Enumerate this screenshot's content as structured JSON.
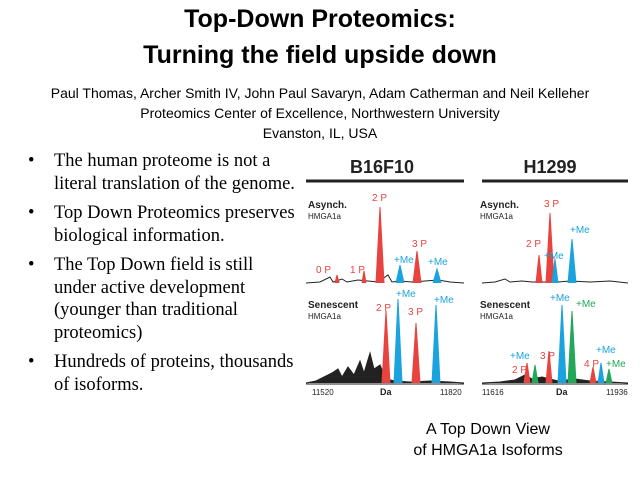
{
  "slide": {
    "title_line1": "Top-Down Proteomics:",
    "title_line2": "Turning the field upside down",
    "authors": "Paul Thomas, Archer Smith IV, John Paul Savaryn, Adam Catherman and Neil Kelleher",
    "affiliation": "Proteomics Center of Excellence, Northwestern University",
    "location": "Evanston, IL, USA"
  },
  "bullets": [
    {
      "marker": "•",
      "text": "The human proteome is not a literal translation of the genome."
    },
    {
      "marker": "•",
      "text": "Top Down Proteomics preserves biological information."
    },
    {
      "marker": "•",
      "text": "The Top Down field is still under active development (younger than traditional proteomics)"
    },
    {
      "marker": "•",
      "text": "Hundreds of proteins, thousands of isoforms."
    }
  ],
  "figure": {
    "caption_line1": "A Top Down View",
    "caption_line2": "of HMGA1a Isoforms",
    "colors": {
      "phospho": "#e8433f",
      "methyl": "#1aa3dc",
      "dimethyl": "#23a85a",
      "base": "#222222"
    },
    "panels": {
      "b16f10": {
        "header": "B16F10",
        "top_label": "Asynch.",
        "top_sub": "HMGA1a",
        "bottom_label": "Senescent",
        "bottom_sub": "HMGA1a",
        "top_peaks": [
          "2 P",
          "3 P",
          "0 P",
          "1 P",
          "+Me",
          "+Me"
        ],
        "bottom_peaks": [
          "+Me",
          "+Me",
          "2 P",
          "3 P"
        ],
        "axis_start": "11520",
        "axis_unit": "Da",
        "axis_end": "11820"
      },
      "h1299": {
        "header": "H1299",
        "top_label": "Asynch.",
        "top_sub": "HMGA1a",
        "bottom_label": "Senescent",
        "bottom_sub": "HMGA1a",
        "top_peaks": [
          "3 P",
          "2 P",
          "+Me",
          "+Me"
        ],
        "bottom_peaks": [
          "+Me",
          "+Me",
          "+Me",
          "3 P",
          "+Me",
          "4 P",
          "+Me",
          "2 P"
        ],
        "axis_start": "11616",
        "axis_unit": "Da",
        "axis_end": "11936"
      }
    }
  }
}
